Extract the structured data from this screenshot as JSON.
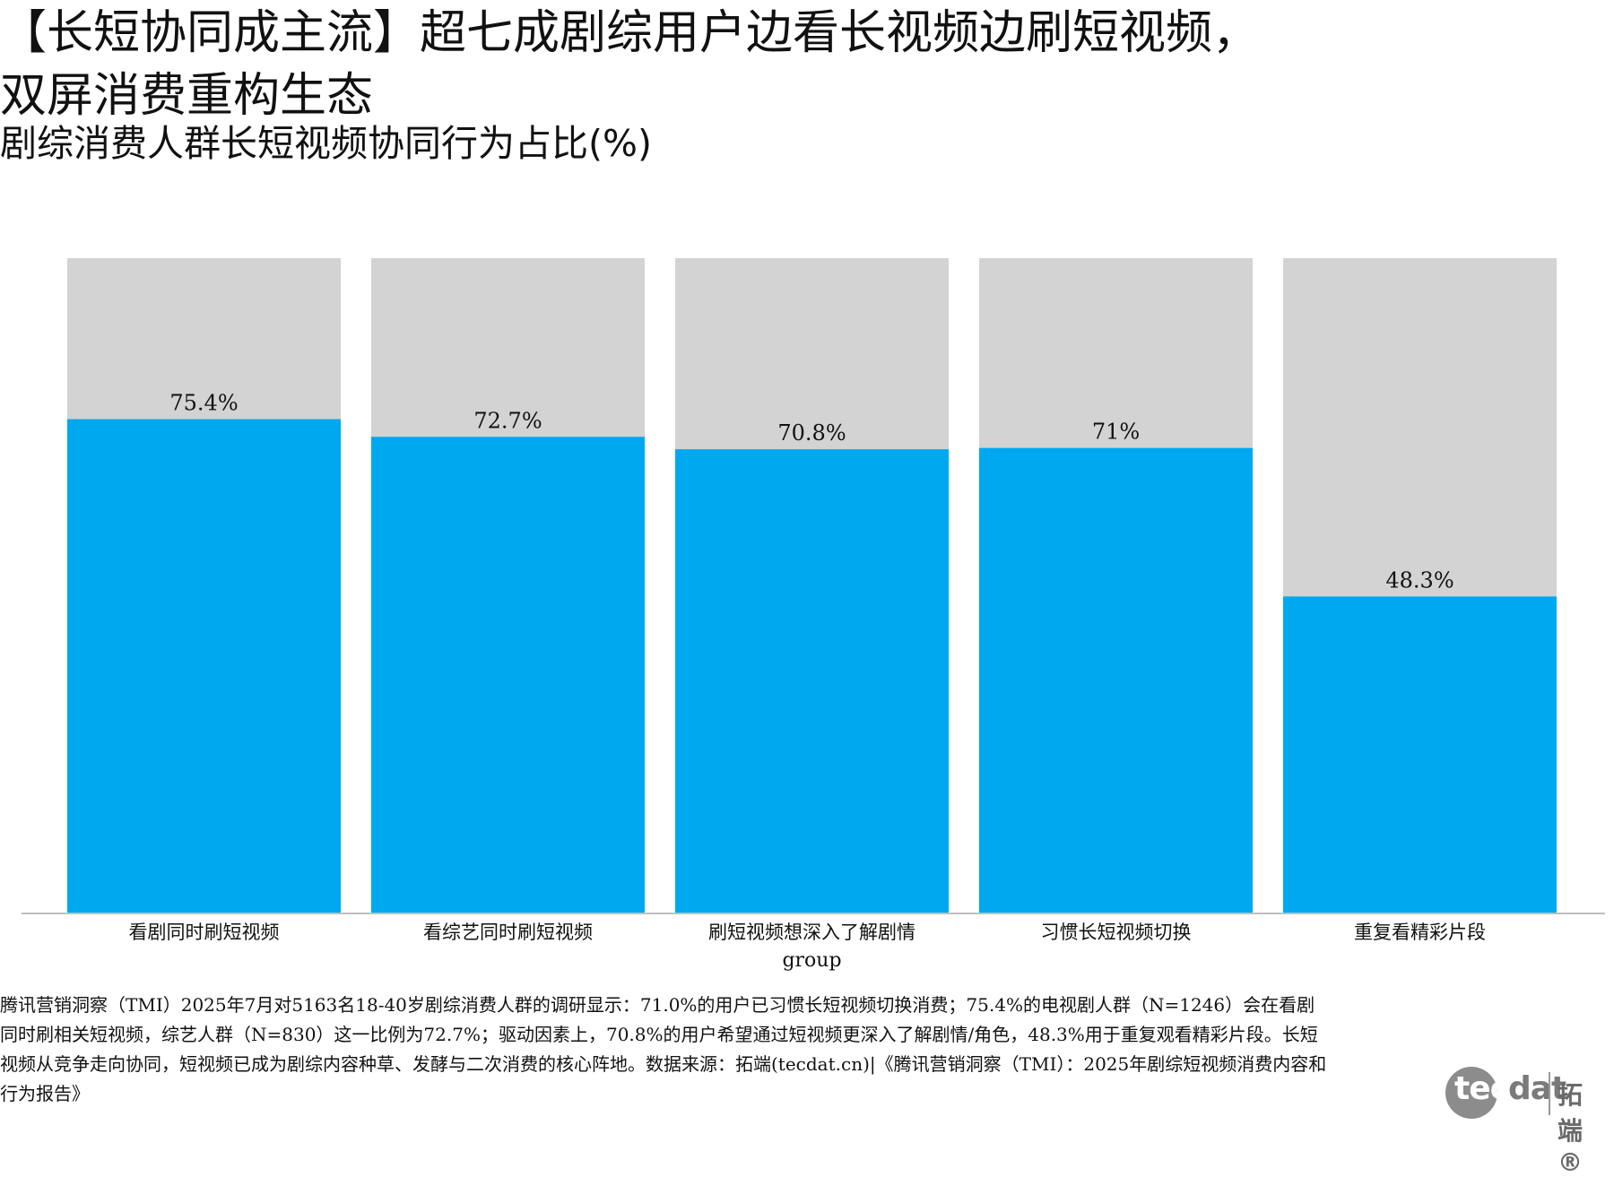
{
  "header": {
    "title": "【长短协同成主流】超七成剧综用户边看长视频边刷短视频，双屏消费重构生态",
    "subtitle": "剧综消费人群长短视频协同行为占比(%)"
  },
  "chart_data": {
    "type": "bar",
    "stacked_background": true,
    "categories": [
      "看剧同时刷短视频",
      "看综艺同时刷短视频",
      "刷短视频想深入了解剧情",
      "习惯长短视频切换",
      "重复看精彩片段"
    ],
    "values": [
      75.4,
      72.7,
      70.8,
      71,
      48.3
    ],
    "data_labels": [
      "75.4%",
      "72.7%",
      "70.8%",
      "71%",
      "48.3%"
    ],
    "xlabel": "group",
    "ylabel": "",
    "ylim": [
      0,
      100
    ],
    "grid": false,
    "colors": {
      "bar": "#00a8f0",
      "background": "#d3d3d3",
      "axis": "#bfbfbf"
    }
  },
  "footnote": "腾讯营销洞察（TMI）2025年7月对5163名18-40岁剧综消费人群的调研显示：71.0%的用户已习惯长短视频切换消费；75.4%的电视剧人群（N=1246）会在看剧同时刷相关短视频，综艺人群（N=830）这一比例为72.7%；驱动因素上，70.8%的用户希望通过短视频更深入了解剧情/角色，48.3%用于重复观看精彩片段。长短视频从竞争走向协同，短视频已成为剧综内容种草、发酵与二次消费的核心阵地。数据来源：拓端(tecdat.cn)|《腾讯营销洞察（TMI）：2025年剧综短视频消费内容和行为报告》",
  "logo": {
    "word_a": "tec",
    "word_b": "dat",
    "cn": "拓端®"
  }
}
